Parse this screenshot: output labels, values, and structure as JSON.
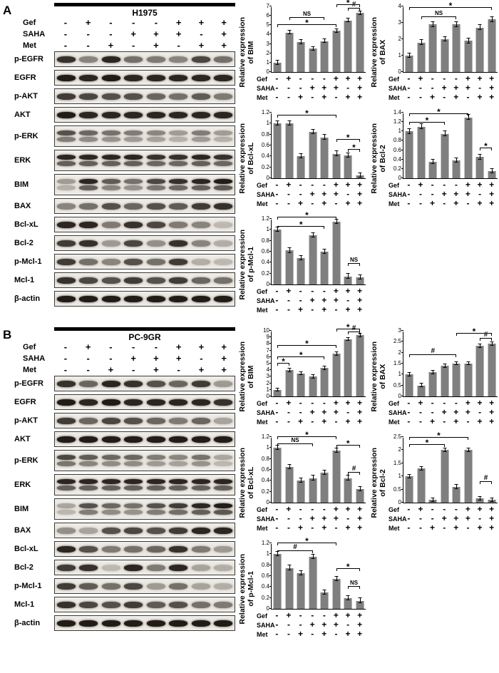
{
  "figure": {
    "panels": [
      {
        "label": "A",
        "cell_line": "H1975",
        "treatments": [
          {
            "name": "Gef",
            "signs": [
              "-",
              "+",
              "-",
              "-",
              "-",
              "+",
              "+",
              "+"
            ]
          },
          {
            "name": "SAHA",
            "signs": [
              "-",
              "-",
              "-",
              "+",
              "+",
              "+",
              "-",
              "+"
            ]
          },
          {
            "name": "Met",
            "signs": [
              "-",
              "-",
              "+",
              "-",
              "+",
              "-",
              "+",
              "+"
            ]
          }
        ],
        "blots": [
          {
            "label": "p-EGFR",
            "doublet": false,
            "intensities": [
              0.85,
              0.45,
              0.9,
              0.55,
              0.5,
              0.45,
              0.75,
              0.55
            ]
          },
          {
            "label": "EGFR",
            "doublet": false,
            "intensities": [
              0.95,
              0.9,
              0.95,
              0.9,
              0.9,
              0.9,
              0.9,
              0.9
            ]
          },
          {
            "label": "p-AKT",
            "doublet": false,
            "intensities": [
              0.8,
              0.75,
              0.7,
              0.7,
              0.6,
              0.55,
              0.65,
              0.5
            ]
          },
          {
            "label": "AKT",
            "doublet": false,
            "intensities": [
              0.95,
              0.9,
              0.9,
              0.9,
              0.9,
              0.9,
              0.9,
              0.9
            ]
          },
          {
            "label": "p-ERK",
            "doublet": true,
            "intensities": [
              0.7,
              0.6,
              0.55,
              0.5,
              0.45,
              0.35,
              0.5,
              0.35
            ]
          },
          {
            "label": "ERK",
            "doublet": true,
            "intensities": [
              0.9,
              0.9,
              0.9,
              0.9,
              0.85,
              0.85,
              0.9,
              0.85
            ]
          },
          {
            "label": "BIM",
            "doublet": true,
            "intensities": [
              0.35,
              0.9,
              0.65,
              0.55,
              0.75,
              0.85,
              0.9,
              0.95
            ]
          },
          {
            "label": "BAX",
            "doublet": false,
            "intensities": [
              0.45,
              0.55,
              0.7,
              0.6,
              0.7,
              0.65,
              0.8,
              0.85
            ]
          },
          {
            "label": "Bcl-xL",
            "doublet": false,
            "intensities": [
              0.9,
              0.9,
              0.5,
              0.85,
              0.75,
              0.5,
              0.45,
              0.2
            ]
          },
          {
            "label": "Bcl-2",
            "doublet": false,
            "intensities": [
              0.8,
              0.85,
              0.35,
              0.75,
              0.4,
              0.85,
              0.45,
              0.25
            ]
          },
          {
            "label": "p-Mcl-1",
            "doublet": false,
            "intensities": [
              0.8,
              0.55,
              0.45,
              0.7,
              0.55,
              0.8,
              0.25,
              0.2
            ]
          },
          {
            "label": "Mcl-1",
            "doublet": false,
            "intensities": [
              0.85,
              0.75,
              0.7,
              0.8,
              0.7,
              0.8,
              0.6,
              0.55
            ]
          },
          {
            "label": "β-actin",
            "doublet": false,
            "intensities": [
              0.95,
              0.95,
              0.95,
              0.95,
              0.95,
              0.95,
              0.95,
              0.95
            ]
          }
        ]
      },
      {
        "label": "B",
        "cell_line": "PC-9GR",
        "treatments": [
          {
            "name": "Gef",
            "signs": [
              "-",
              "+",
              "-",
              "-",
              "-",
              "+",
              "+",
              "+"
            ]
          },
          {
            "name": "SAHA",
            "signs": [
              "-",
              "-",
              "-",
              "+",
              "+",
              "+",
              "-",
              "+"
            ]
          },
          {
            "name": "Met",
            "signs": [
              "-",
              "-",
              "+",
              "-",
              "+",
              "-",
              "+",
              "+"
            ]
          }
        ],
        "blots": [
          {
            "label": "p-EGFR",
            "doublet": false,
            "intensities": [
              0.85,
              0.6,
              0.9,
              0.85,
              0.7,
              0.6,
              0.8,
              0.35
            ]
          },
          {
            "label": "EGFR",
            "doublet": false,
            "intensities": [
              0.95,
              0.9,
              0.95,
              0.9,
              0.9,
              0.9,
              0.9,
              0.85
            ]
          },
          {
            "label": "p-AKT",
            "doublet": false,
            "intensities": [
              0.8,
              0.6,
              0.75,
              0.7,
              0.6,
              0.5,
              0.6,
              0.3
            ]
          },
          {
            "label": "AKT",
            "doublet": false,
            "intensities": [
              0.95,
              0.95,
              0.95,
              0.95,
              0.95,
              0.95,
              0.95,
              0.95
            ]
          },
          {
            "label": "p-ERK",
            "doublet": true,
            "intensities": [
              0.75,
              0.65,
              0.6,
              0.6,
              0.5,
              0.45,
              0.55,
              0.3
            ]
          },
          {
            "label": "ERK",
            "doublet": true,
            "intensities": [
              0.9,
              0.9,
              0.9,
              0.9,
              0.9,
              0.9,
              0.9,
              0.9
            ]
          },
          {
            "label": "BIM",
            "doublet": true,
            "intensities": [
              0.3,
              0.7,
              0.6,
              0.55,
              0.7,
              0.8,
              0.9,
              0.95
            ]
          },
          {
            "label": "BAX",
            "doublet": false,
            "intensities": [
              0.4,
              0.3,
              0.7,
              0.75,
              0.7,
              0.8,
              0.9,
              0.9
            ]
          },
          {
            "label": "Bcl-xL",
            "doublet": false,
            "intensities": [
              0.9,
              0.7,
              0.5,
              0.55,
              0.6,
              0.85,
              0.5,
              0.35
            ]
          },
          {
            "label": "Bcl-2",
            "doublet": false,
            "intensities": [
              0.8,
              0.85,
              0.2,
              0.9,
              0.5,
              0.9,
              0.3,
              0.25
            ]
          },
          {
            "label": "p-Mcl-1",
            "doublet": false,
            "intensities": [
              0.8,
              0.65,
              0.55,
              0.75,
              0.35,
              0.55,
              0.3,
              0.25
            ]
          },
          {
            "label": "Mcl-1",
            "doublet": false,
            "intensities": [
              0.85,
              0.75,
              0.7,
              0.8,
              0.65,
              0.7,
              0.55,
              0.5
            ]
          },
          {
            "label": "β-actin",
            "doublet": false,
            "intensities": [
              0.95,
              0.95,
              0.95,
              0.95,
              0.95,
              0.95,
              0.95,
              0.95
            ]
          }
        ]
      }
    ]
  },
  "chart_data": [
    {
      "panel": "A",
      "name": "BIM",
      "type": "bar",
      "bar_color": "#7f7f7f",
      "ylabel_line1": "Relative expression",
      "ylabel_line2": "of BIM",
      "ylim": [
        0,
        7
      ],
      "yticks": [
        0,
        1,
        2,
        3,
        4,
        5,
        6,
        7
      ],
      "values": [
        1,
        4.2,
        3.2,
        2.5,
        3.3,
        4.4,
        5.5,
        6.3
      ],
      "err": 0.2,
      "annotations": [
        {
          "from": 0,
          "to": 5,
          "label": "*",
          "h": 0.68
        },
        {
          "from": 1,
          "to": 4,
          "label": "NS",
          "h": 0.79
        },
        {
          "from": 5,
          "to": 7,
          "label": "*",
          "h": 0.99
        },
        {
          "from": 6,
          "to": 7,
          "label": "#",
          "h": 0.93
        }
      ]
    },
    {
      "panel": "A",
      "name": "BAX",
      "type": "bar",
      "bar_color": "#7f7f7f",
      "ylabel_line1": "Relative expression",
      "ylabel_line2": "of BAX",
      "ylim": [
        0,
        4
      ],
      "yticks": [
        0,
        1,
        2,
        3,
        4
      ],
      "values": [
        1,
        1.8,
        2.9,
        2,
        2.9,
        1.9,
        2.7,
        3.2
      ],
      "err": 0.15,
      "annotations": [
        {
          "from": 1,
          "to": 4,
          "label": "NS",
          "h": 0.8
        },
        {
          "from": 0,
          "to": 7,
          "label": "*",
          "h": 0.95
        }
      ]
    },
    {
      "panel": "A",
      "name": "Bcl-xL",
      "type": "bar",
      "bar_color": "#7f7f7f",
      "ylabel_line1": "Relative expression",
      "ylabel_line2": "of Bcl-xL",
      "ylim": [
        0,
        1.2
      ],
      "yticks": [
        0,
        0.2,
        0.4,
        0.6,
        0.8,
        1,
        1.2
      ],
      "values": [
        1,
        1,
        0.4,
        0.85,
        0.75,
        0.45,
        0.42,
        0.05
      ],
      "err": 0.04,
      "annotations": [
        {
          "from": 0,
          "to": 5,
          "label": "*",
          "h": 0.92
        },
        {
          "from": 5,
          "to": 7,
          "label": "*",
          "h": 0.55
        },
        {
          "from": 6,
          "to": 7,
          "label": "*",
          "h": 0.4
        }
      ]
    },
    {
      "panel": "A",
      "name": "Bcl-2",
      "type": "bar",
      "bar_color": "#7f7f7f",
      "ylabel_line1": "Relative expression",
      "ylabel_line2": "of Bcl-2",
      "ylim": [
        0,
        1.4
      ],
      "yticks": [
        0,
        0.2,
        0.4,
        0.6,
        0.8,
        1,
        1.2,
        1.4
      ],
      "values": [
        1,
        1.1,
        0.35,
        0.95,
        0.38,
        1.3,
        0.45,
        0.15
      ],
      "err": 0.05,
      "annotations": [
        {
          "from": 0,
          "to": 3,
          "label": "*",
          "h": 0.82
        },
        {
          "from": 0,
          "to": 5,
          "label": "*",
          "h": 0.95
        },
        {
          "from": 6,
          "to": 7,
          "label": "*",
          "h": 0.42
        }
      ]
    },
    {
      "panel": "A",
      "name": "p-Mcl-1",
      "type": "bar",
      "bar_color": "#7f7f7f",
      "ylabel_line1": "Relative expression",
      "ylabel_line2": "of p-Mcl-1",
      "ylim": [
        0,
        1.2
      ],
      "yticks": [
        0,
        0.2,
        0.4,
        0.6,
        0.8,
        1,
        1.2
      ],
      "values": [
        1,
        0.62,
        0.48,
        0.9,
        0.6,
        1.15,
        0.15,
        0.13
      ],
      "err": 0.04,
      "annotations": [
        {
          "from": 0,
          "to": 4,
          "label": "*",
          "h": 0.85
        },
        {
          "from": 0,
          "to": 5,
          "label": "*",
          "h": 0.99
        },
        {
          "from": 6,
          "to": 7,
          "label": "NS",
          "h": 0.28
        }
      ]
    },
    {
      "panel": "B",
      "name": "BIM",
      "type": "bar",
      "bar_color": "#7f7f7f",
      "ylabel_line1": "Relative expression",
      "ylabel_line2": "of BIM",
      "ylim": [
        0,
        10
      ],
      "yticks": [
        0,
        1,
        2,
        3,
        4,
        5,
        6,
        7,
        8,
        9,
        10
      ],
      "values": [
        1,
        4,
        3.5,
        3,
        4.3,
        6.5,
        8.7,
        9.3
      ],
      "err": 0.25,
      "annotations": [
        {
          "from": 0,
          "to": 1,
          "label": "*",
          "h": 0.47
        },
        {
          "from": 0,
          "to": 4,
          "label": "*",
          "h": 0.56
        },
        {
          "from": 0,
          "to": 5,
          "label": "*",
          "h": 0.74
        },
        {
          "from": 5,
          "to": 7,
          "label": "*",
          "h": 0.99
        },
        {
          "from": 6,
          "to": 7,
          "label": "#",
          "h": 0.95
        }
      ]
    },
    {
      "panel": "B",
      "name": "BAX",
      "type": "bar",
      "bar_color": "#7f7f7f",
      "ylabel_line1": "Relative expression",
      "ylabel_line2": "of BAX",
      "ylim": [
        0,
        3
      ],
      "yticks": [
        0,
        0.5,
        1,
        1.5,
        2,
        2.5,
        3
      ],
      "values": [
        1,
        0.5,
        1.1,
        1.4,
        1.5,
        1.5,
        2.3,
        2.4
      ],
      "err": 0.08,
      "annotations": [
        {
          "from": 0,
          "to": 4,
          "label": "#",
          "h": 0.6
        },
        {
          "from": 4,
          "to": 7,
          "label": "*",
          "h": 0.92
        },
        {
          "from": 6,
          "to": 7,
          "label": "#",
          "h": 0.85
        }
      ]
    },
    {
      "panel": "B",
      "name": "Bcl-xL",
      "type": "bar",
      "bar_color": "#7f7f7f",
      "ylabel_line1": "Relative expression",
      "ylabel_line2": "of Bcl-xL",
      "ylim": [
        0,
        1.2
      ],
      "yticks": [
        0,
        0.2,
        0.4,
        0.6,
        0.8,
        1,
        1.2
      ],
      "values": [
        1,
        0.65,
        0.4,
        0.45,
        0.55,
        0.95,
        0.45,
        0.25
      ],
      "err": 0.04,
      "annotations": [
        {
          "from": 0,
          "to": 3,
          "label": "NS",
          "h": 0.86
        },
        {
          "from": 0,
          "to": 5,
          "label": "*",
          "h": 0.97
        },
        {
          "from": 5,
          "to": 7,
          "label": "*",
          "h": 0.84
        },
        {
          "from": 6,
          "to": 7,
          "label": "#",
          "h": 0.42
        }
      ]
    },
    {
      "panel": "B",
      "name": "Bcl-2",
      "type": "bar",
      "bar_color": "#7f7f7f",
      "ylabel_line1": "Relative expression",
      "ylabel_line2": "of Bcl-2",
      "ylim": [
        0,
        2.5
      ],
      "yticks": [
        0,
        0.5,
        1,
        1.5,
        2,
        2.5
      ],
      "values": [
        1,
        1.3,
        0.1,
        2,
        0.6,
        2,
        0.15,
        0.1
      ],
      "err": 0.07,
      "annotations": [
        {
          "from": 0,
          "to": 3,
          "label": "*",
          "h": 0.85
        },
        {
          "from": 0,
          "to": 5,
          "label": "*",
          "h": 0.96
        },
        {
          "from": 6,
          "to": 7,
          "label": "#",
          "h": 0.28
        }
      ]
    },
    {
      "panel": "B",
      "name": "p-Mcl-1",
      "type": "bar",
      "bar_color": "#7f7f7f",
      "ylabel_line1": "Relative expression",
      "ylabel_line2": "of p-Mcl-1",
      "ylim": [
        0,
        1.2
      ],
      "yticks": [
        0,
        0.2,
        0.4,
        0.6,
        0.8,
        1,
        1.2
      ],
      "values": [
        1,
        0.75,
        0.65,
        0.95,
        0.3,
        0.55,
        0.2,
        0.15
      ],
      "err": 0.04,
      "annotations": [
        {
          "from": 0,
          "to": 3,
          "label": "#",
          "h": 0.85
        },
        {
          "from": 0,
          "to": 5,
          "label": "*",
          "h": 0.97
        },
        {
          "from": 5,
          "to": 7,
          "label": "*",
          "h": 0.58
        },
        {
          "from": 6,
          "to": 7,
          "label": "NS",
          "h": 0.3
        }
      ]
    }
  ]
}
